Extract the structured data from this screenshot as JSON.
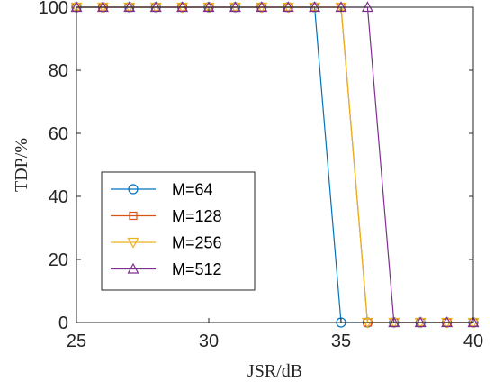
{
  "chart_data": {
    "type": "line",
    "xlabel": "JSR/dB",
    "ylabel": "TDP/%",
    "xlim": [
      25,
      40
    ],
    "ylim": [
      0,
      100
    ],
    "xticks": [
      25,
      30,
      35,
      40
    ],
    "yticks": [
      0,
      20,
      40,
      60,
      80,
      100
    ],
    "x": [
      25,
      26,
      27,
      28,
      29,
      30,
      31,
      32,
      33,
      34,
      35,
      36,
      37,
      38,
      39,
      40
    ],
    "grid": false,
    "legend_position": "left",
    "series": [
      {
        "name": "M=64",
        "color": "#0072BD",
        "marker": "circle",
        "values": [
          100,
          100,
          100,
          100,
          100,
          100,
          100,
          100,
          100,
          100,
          0,
          0,
          0,
          0,
          0,
          0
        ]
      },
      {
        "name": "M=128",
        "color": "#D95319",
        "marker": "square",
        "values": [
          100,
          100,
          100,
          100,
          100,
          100,
          100,
          100,
          100,
          100,
          100,
          0,
          0,
          0,
          0,
          0
        ]
      },
      {
        "name": "M=256",
        "color": "#EDB120",
        "marker": "triangle-down",
        "values": [
          100,
          100,
          100,
          100,
          100,
          100,
          100,
          100,
          100,
          100,
          100,
          0,
          0,
          0,
          0,
          0
        ]
      },
      {
        "name": "M=512",
        "color": "#7E2F8E",
        "marker": "triangle-up",
        "values": [
          100,
          100,
          100,
          100,
          100,
          100,
          100,
          100,
          100,
          100,
          100,
          100,
          0,
          0,
          0,
          0
        ]
      }
    ]
  }
}
